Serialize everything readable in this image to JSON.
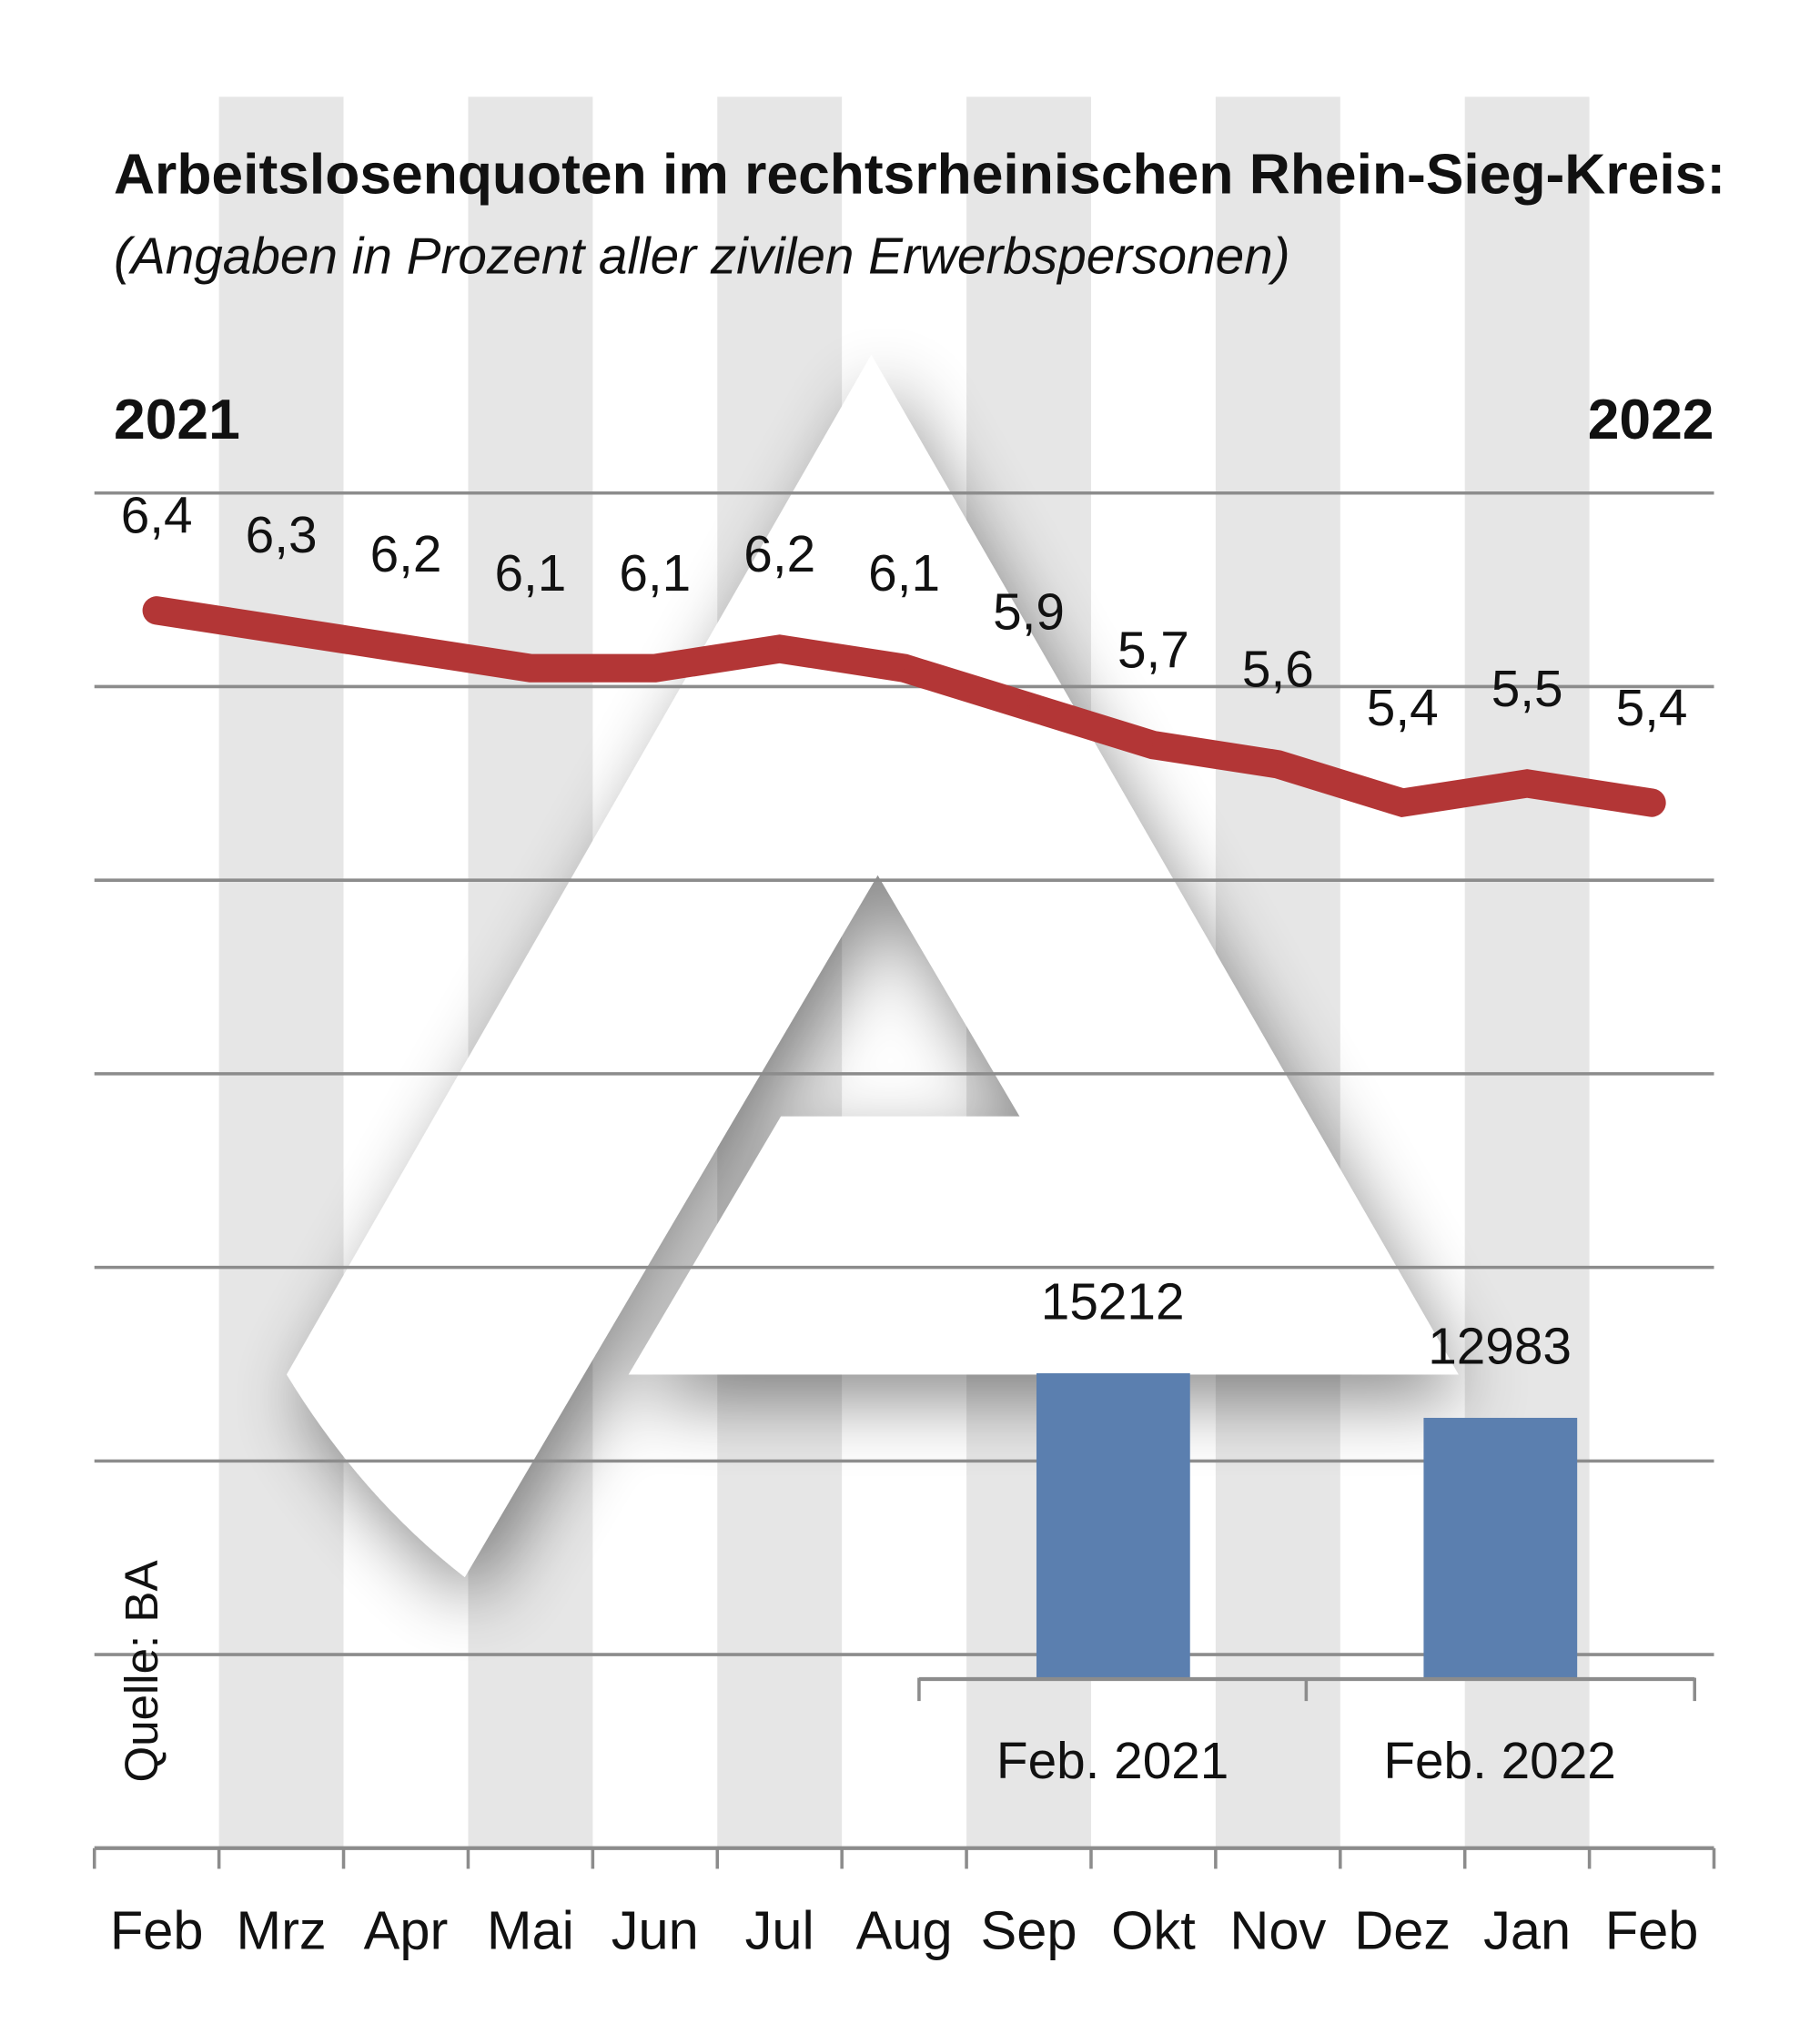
{
  "chart_data": [
    {
      "type": "line",
      "title": "Arbeitslosenquoten im rechtsrheinischen Rhein-Sieg-Kreis:",
      "subtitle": "(Angaben in Prozent aller zivilen Erwerbspersonen)",
      "year_start": "2021",
      "year_end": "2022",
      "categories": [
        "Feb",
        "Mrz",
        "Apr",
        "Mai",
        "Jun",
        "Jul",
        "Aug",
        "Sep",
        "Okt",
        "Nov",
        "Dez",
        "Jan",
        "Feb"
      ],
      "values": [
        6.4,
        6.3,
        6.2,
        6.1,
        6.1,
        6.2,
        6.1,
        5.9,
        5.7,
        5.6,
        5.4,
        5.5,
        5.4
      ],
      "value_labels": [
        "6,4",
        "6,3",
        "6,2",
        "6,1",
        "6,1",
        "6,2",
        "6,1",
        "5,9",
        "5,7",
        "5,6",
        "5,4",
        "5,5",
        "5,4"
      ],
      "color": "#b33636",
      "grid": true,
      "xlabel": "",
      "ylabel": ""
    },
    {
      "type": "bar",
      "categories": [
        "Feb. 2021",
        "Feb. 2022"
      ],
      "values": [
        15212,
        12983
      ],
      "value_labels": [
        "15212",
        "12983"
      ],
      "color": "#5b7faf"
    }
  ],
  "source": "Quelle: BA",
  "colors": {
    "stripe": "#e6e6e6",
    "grid": "#8c8c8c"
  }
}
